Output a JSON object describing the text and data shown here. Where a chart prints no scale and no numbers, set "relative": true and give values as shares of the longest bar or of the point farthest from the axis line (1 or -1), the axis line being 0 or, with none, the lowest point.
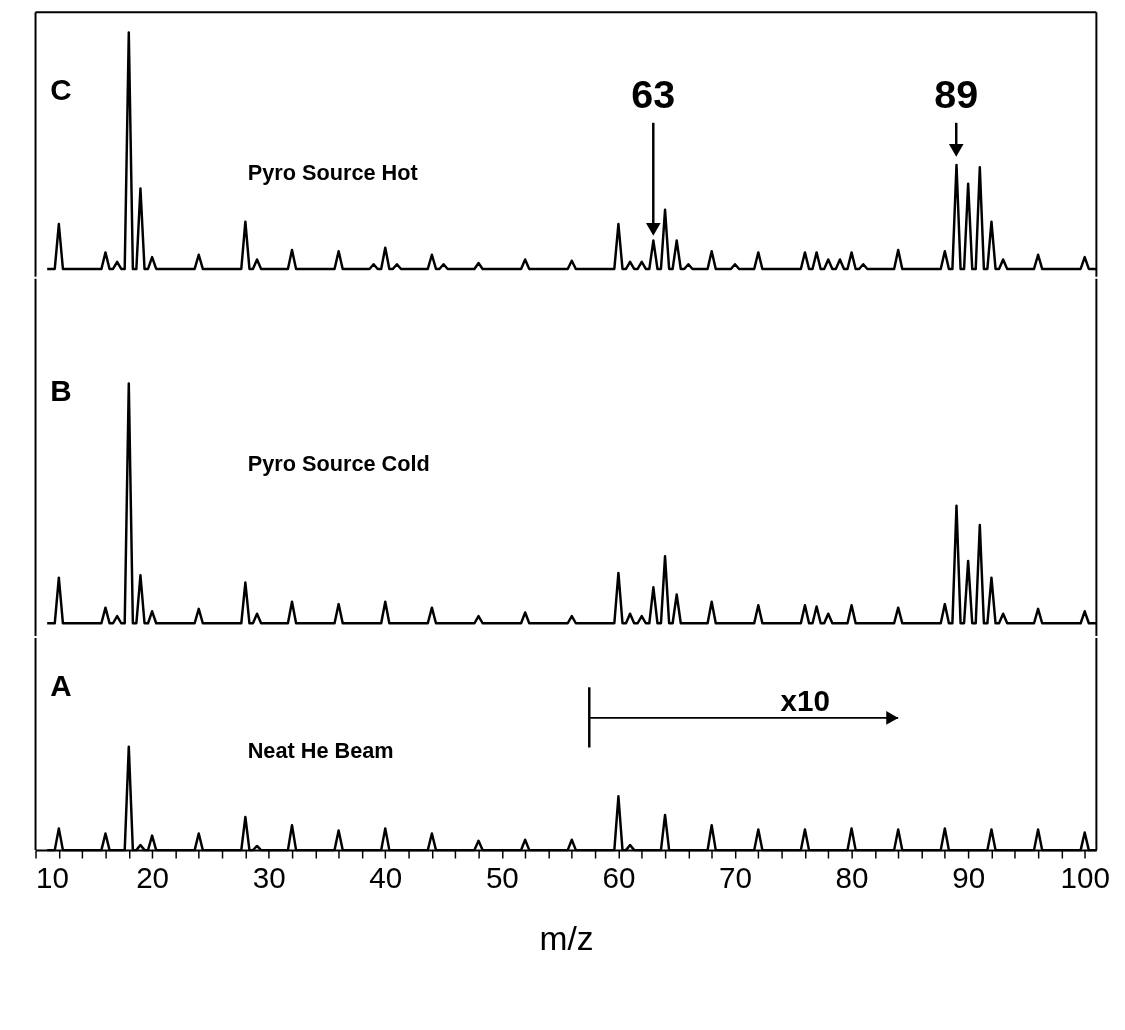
{
  "chart_data": [
    {
      "type": "line",
      "relative": true,
      "xlim": [
        10,
        101
      ],
      "tick_labels": false,
      "line_style": "solid",
      "marker": "none",
      "annotations": [
        "C",
        "Pyro Source Hot",
        "63",
        "89"
      ],
      "series": [
        {
          "color": "#000000",
          "x": [
            11,
            11.65,
            12,
            12.35,
            15.65,
            16,
            16.35,
            16.65,
            17,
            17.35,
            17.65,
            18,
            18.35,
            18.65,
            19,
            19.35,
            19.65,
            20,
            20.35,
            23.65,
            24,
            24.35,
            27.65,
            28,
            28.35,
            28.65,
            29,
            29.35,
            31.65,
            32,
            32.35,
            35.65,
            36,
            36.35,
            38.65,
            39,
            39.35,
            39.65,
            40,
            40.35,
            40.65,
            41,
            41.35,
            43.65,
            44,
            44.35,
            44.65,
            45,
            45.35,
            47.65,
            48,
            48.35,
            51.65,
            52,
            52.35,
            55.65,
            56,
            56.35,
            59.65,
            60,
            60.35,
            60.65,
            61,
            61.35,
            61.65,
            62,
            62.35,
            62.65,
            63,
            63.35,
            63.65,
            64,
            64.35,
            64.65,
            65,
            65.35,
            65.65,
            66,
            66.35,
            67.65,
            68,
            68.35,
            69.65,
            70,
            70.35,
            71.65,
            72,
            72.35,
            75.65,
            76,
            76.35,
            76.65,
            77,
            77.35,
            77.65,
            78,
            78.35,
            78.65,
            79,
            79.35,
            79.65,
            80,
            80.35,
            80.65,
            81,
            81.35,
            83.65,
            84,
            84.35,
            87.65,
            88,
            88.35,
            88.65,
            89,
            89.35,
            89.65,
            90,
            90.35,
            90.65,
            91,
            91.35,
            91.65,
            92,
            92.35,
            92.65,
            93,
            93.35,
            95.65,
            96,
            96.35,
            99.65,
            100,
            100.35,
            101
          ],
          "values": [
            0,
            0,
            0.19,
            0,
            0,
            0.07,
            0,
            0,
            0.03,
            0,
            0,
            1,
            0,
            0,
            0.34,
            0,
            0,
            0.05,
            0,
            0,
            0.06,
            0,
            0,
            0.2,
            0,
            0,
            0.04,
            0,
            0,
            0.08,
            0,
            0,
            0.075,
            0,
            0,
            0.02,
            0,
            0,
            0.09,
            0,
            0,
            0.02,
            0,
            0,
            0.06,
            0,
            0,
            0.02,
            0,
            0,
            0.025,
            0,
            0,
            0.04,
            0,
            0,
            0.035,
            0,
            0,
            0.19,
            0,
            0,
            0.03,
            0,
            0,
            0.03,
            0,
            0,
            0.12,
            0,
            0,
            0.25,
            0,
            0,
            0.12,
            0,
            0,
            0.02,
            0,
            0,
            0.075,
            0,
            0,
            0.02,
            0,
            0,
            0.07,
            0,
            0,
            0.07,
            0,
            0,
            0.07,
            0,
            0,
            0.04,
            0,
            0,
            0.04,
            0,
            0,
            0.07,
            0,
            0,
            0.02,
            0,
            0,
            0.08,
            0,
            0,
            0.075,
            0,
            0,
            0.44,
            0,
            0,
            0.36,
            0,
            0,
            0.43,
            0,
            0,
            0.2,
            0,
            0,
            0.04,
            0,
            0,
            0.06,
            0,
            0,
            0.05,
            0,
            0
          ]
        }
      ]
    },
    {
      "type": "line",
      "relative": true,
      "xlim": [
        10,
        101
      ],
      "tick_labels": false,
      "line_style": "solid",
      "marker": "none",
      "annotations": [
        "B",
        "Pyro Source Cold"
      ],
      "series": [
        {
          "color": "#000000",
          "x": [
            11,
            11.65,
            12,
            12.35,
            15.65,
            16,
            16.35,
            16.65,
            17,
            17.35,
            17.65,
            18,
            18.35,
            18.65,
            19,
            19.35,
            19.65,
            20,
            20.35,
            23.65,
            24,
            24.35,
            27.65,
            28,
            28.35,
            28.65,
            29,
            29.35,
            31.65,
            32,
            32.35,
            35.65,
            36,
            36.35,
            39.65,
            40,
            40.35,
            43.65,
            44,
            44.35,
            47.65,
            48,
            48.35,
            51.65,
            52,
            52.35,
            55.65,
            56,
            56.35,
            59.65,
            60,
            60.35,
            60.65,
            61,
            61.35,
            61.65,
            62,
            62.35,
            62.65,
            63,
            63.35,
            63.65,
            64,
            64.35,
            64.65,
            65,
            65.35,
            67.65,
            68,
            68.35,
            71.65,
            72,
            72.35,
            75.65,
            76,
            76.35,
            76.65,
            77,
            77.35,
            77.65,
            78,
            78.35,
            79.65,
            80,
            80.35,
            83.65,
            84,
            84.35,
            87.65,
            88,
            88.35,
            88.65,
            89,
            89.35,
            89.65,
            90,
            90.35,
            90.65,
            91,
            91.35,
            91.65,
            92,
            92.35,
            92.65,
            93,
            93.35,
            95.65,
            96,
            96.35,
            99.65,
            100,
            100.35,
            101
          ],
          "values": [
            0,
            0,
            0.19,
            0,
            0,
            0.065,
            0,
            0,
            0.03,
            0,
            0,
            1,
            0,
            0,
            0.2,
            0,
            0,
            0.05,
            0,
            0,
            0.06,
            0,
            0,
            0.17,
            0,
            0,
            0.04,
            0,
            0,
            0.09,
            0,
            0,
            0.08,
            0,
            0,
            0.09,
            0,
            0,
            0.065,
            0,
            0,
            0.03,
            0,
            0,
            0.045,
            0,
            0,
            0.03,
            0,
            0,
            0.21,
            0,
            0,
            0.04,
            0,
            0,
            0.03,
            0,
            0,
            0.15,
            0,
            0,
            0.28,
            0,
            0,
            0.12,
            0,
            0,
            0.09,
            0,
            0,
            0.075,
            0,
            0,
            0.075,
            0,
            0,
            0.07,
            0,
            0,
            0.04,
            0,
            0,
            0.075,
            0,
            0,
            0.065,
            0,
            0,
            0.08,
            0,
            0,
            0.49,
            0,
            0,
            0.26,
            0,
            0,
            0.41,
            0,
            0,
            0.19,
            0,
            0,
            0.04,
            0,
            0,
            0.06,
            0,
            0,
            0.05,
            0,
            0
          ]
        }
      ]
    },
    {
      "type": "line",
      "relative": true,
      "xlim": [
        10,
        101
      ],
      "tick_labels": "x",
      "xlabel": "m/z",
      "line_style": "solid",
      "marker": "none",
      "xticks": [
        10,
        {
          "value": 12,
          "label": null
        },
        {
          "value": 14,
          "label": null
        },
        {
          "value": 16,
          "label": null
        },
        {
          "value": 18,
          "label": null
        },
        20,
        {
          "value": 22,
          "label": null
        },
        {
          "value": 24,
          "label": null
        },
        {
          "value": 26,
          "label": null
        },
        {
          "value": 28,
          "label": null
        },
        30,
        {
          "value": 32,
          "label": null
        },
        {
          "value": 34,
          "label": null
        },
        {
          "value": 36,
          "label": null
        },
        {
          "value": 38,
          "label": null
        },
        40,
        {
          "value": 42,
          "label": null
        },
        {
          "value": 44,
          "label": null
        },
        {
          "value": 46,
          "label": null
        },
        {
          "value": 48,
          "label": null
        },
        50,
        {
          "value": 52,
          "label": null
        },
        {
          "value": 54,
          "label": null
        },
        {
          "value": 56,
          "label": null
        },
        {
          "value": 58,
          "label": null
        },
        60,
        {
          "value": 62,
          "label": null
        },
        {
          "value": 64,
          "label": null
        },
        {
          "value": 66,
          "label": null
        },
        {
          "value": 68,
          "label": null
        },
        70,
        {
          "value": 72,
          "label": null
        },
        {
          "value": 74,
          "label": null
        },
        {
          "value": 76,
          "label": null
        },
        {
          "value": 78,
          "label": null
        },
        80,
        {
          "value": 82,
          "label": null
        },
        {
          "value": 84,
          "label": null
        },
        {
          "value": 86,
          "label": null
        },
        {
          "value": 88,
          "label": null
        },
        90,
        {
          "value": 92,
          "label": null
        },
        {
          "value": 94,
          "label": null
        },
        {
          "value": 96,
          "label": null
        },
        {
          "value": 98,
          "label": null
        },
        100
      ],
      "annotations": [
        "A",
        "Neat He Beam",
        "x10"
      ],
      "series": [
        {
          "color": "#000000",
          "x": [
            11,
            11.65,
            12,
            12.35,
            15.65,
            16,
            16.35,
            17.65,
            18,
            18.35,
            18.65,
            19,
            19.35,
            19.65,
            20,
            20.35,
            23.65,
            24,
            24.35,
            27.65,
            28,
            28.35,
            28.65,
            29,
            29.35,
            31.65,
            32,
            32.35,
            35.65,
            36,
            36.35,
            39.65,
            40,
            40.35,
            43.65,
            44,
            44.35,
            47.65,
            48,
            48.35,
            51.65,
            52,
            52.35,
            55.65,
            56,
            56.35,
            59.65,
            60,
            60.35,
            60.65,
            61,
            61.35,
            63.65,
            64,
            64.35,
            67.65,
            68,
            68.35,
            71.65,
            72,
            72.35,
            75.65,
            76,
            76.35,
            79.65,
            80,
            80.35,
            83.65,
            84,
            84.35,
            87.65,
            88,
            88.35,
            91.65,
            92,
            92.35,
            95.65,
            96,
            96.35,
            99.65,
            100,
            100.35,
            101
          ],
          "values": [
            0,
            0,
            0.21,
            0,
            0,
            0.16,
            0,
            0,
            1,
            0,
            0,
            0.05,
            0,
            0,
            0.14,
            0,
            0,
            0.16,
            0,
            0,
            0.32,
            0,
            0,
            0.04,
            0,
            0,
            0.24,
            0,
            0,
            0.19,
            0,
            0,
            0.21,
            0,
            0,
            0.16,
            0,
            0,
            0.09,
            0,
            0,
            0.1,
            0,
            0,
            0.1,
            0,
            0,
            0.52,
            0,
            0,
            0.05,
            0,
            0,
            0.34,
            0,
            0,
            0.24,
            0,
            0,
            0.2,
            0,
            0,
            0.2,
            0,
            0,
            0.21,
            0,
            0,
            0.2,
            0,
            0,
            0.21,
            0,
            0,
            0.2,
            0,
            0,
            0.2,
            0,
            0,
            0.17,
            0,
            0
          ]
        }
      ]
    }
  ]
}
